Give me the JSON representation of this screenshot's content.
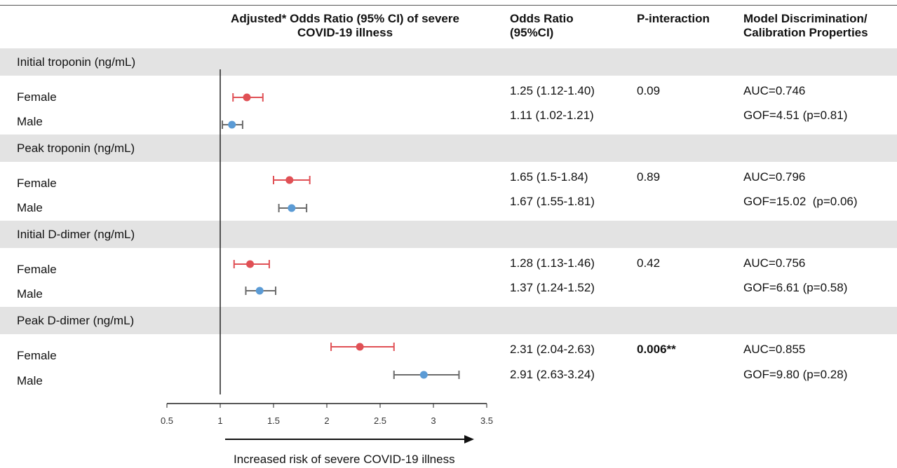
{
  "header": {
    "chart_title_line1": "Adjusted* Odds Ratio (95% CI) of severe",
    "chart_title_line2": "COVID-19 illness",
    "or_line1": "Odds Ratio",
    "or_line2": "(95%CI)",
    "pint": "P-interaction",
    "model_line1": "Model Discrimination/",
    "model_line2": "Calibration Properties"
  },
  "groups": [
    {
      "label": "Initial troponin (ng/mL)",
      "rows": [
        {
          "sex": "Female",
          "or_text": "1.25 (1.12-1.40)",
          "p": "0.09",
          "p_bold": false,
          "model": "AUC=0.746"
        },
        {
          "sex": "Male",
          "or_text": "1.11 (1.02-1.21)",
          "model": "GOF=4.51 (p=0.81)"
        }
      ]
    },
    {
      "label": "Peak troponin (ng/mL)",
      "rows": [
        {
          "sex": "Female",
          "or_text": "1.65 (1.5-1.84)",
          "p": "0.89",
          "p_bold": false,
          "model": "AUC=0.796"
        },
        {
          "sex": "Male",
          "or_text": "1.67 (1.55-1.81)",
          "model": "GOF=15.02  (p=0.06)"
        }
      ]
    },
    {
      "label": "Initial D-dimer (ng/mL)",
      "rows": [
        {
          "sex": "Female",
          "or_text": "1.28 (1.13-1.46)",
          "p": "0.42",
          "p_bold": false,
          "model": "AUC=0.756"
        },
        {
          "sex": "Male",
          "or_text": "1.37 (1.24-1.52)",
          "model": "GOF=6.61 (p=0.58)"
        }
      ]
    },
    {
      "label": "Peak D-dimer (ng/mL)",
      "rows": [
        {
          "sex": "Female",
          "or_text": "2.31 (2.04-2.63)",
          "p": "0.006**",
          "p_bold": true,
          "model": "AUC=0.855"
        },
        {
          "sex": "Male",
          "or_text": "2.91 (2.63-3.24)",
          "model": "GOF=9.80 (p=0.28)"
        }
      ]
    }
  ],
  "chart_data": {
    "type": "forest",
    "x_ticks": [
      "0.5",
      "1",
      "1.5",
      "2",
      "2.5",
      "3",
      "3.5"
    ],
    "xlim": [
      0.5,
      3.5
    ],
    "reference_line": 1,
    "arrow_caption": "Increased risk of severe COVID-19 illness",
    "colors": {
      "female": "#e05055",
      "male": "#5b9bd5",
      "female_ci": "#e05055",
      "male_ci": "#6b6b6b"
    },
    "points": [
      {
        "group": "Initial troponin (ng/mL)",
        "sex": "Female",
        "or": 1.25,
        "lo": 1.12,
        "hi": 1.4
      },
      {
        "group": "Initial troponin (ng/mL)",
        "sex": "Male",
        "or": 1.11,
        "lo": 1.02,
        "hi": 1.21
      },
      {
        "group": "Peak troponin (ng/mL)",
        "sex": "Female",
        "or": 1.65,
        "lo": 1.5,
        "hi": 1.84
      },
      {
        "group": "Peak troponin (ng/mL)",
        "sex": "Male",
        "or": 1.67,
        "lo": 1.55,
        "hi": 1.81
      },
      {
        "group": "Initial D-dimer (ng/mL)",
        "sex": "Female",
        "or": 1.28,
        "lo": 1.13,
        "hi": 1.46
      },
      {
        "group": "Initial D-dimer (ng/mL)",
        "sex": "Male",
        "or": 1.37,
        "lo": 1.24,
        "hi": 1.52
      },
      {
        "group": "Peak D-dimer (ng/mL)",
        "sex": "Female",
        "or": 2.31,
        "lo": 2.04,
        "hi": 2.63
      },
      {
        "group": "Peak D-dimer (ng/mL)",
        "sex": "Male",
        "or": 2.91,
        "lo": 2.63,
        "hi": 3.24
      }
    ]
  }
}
